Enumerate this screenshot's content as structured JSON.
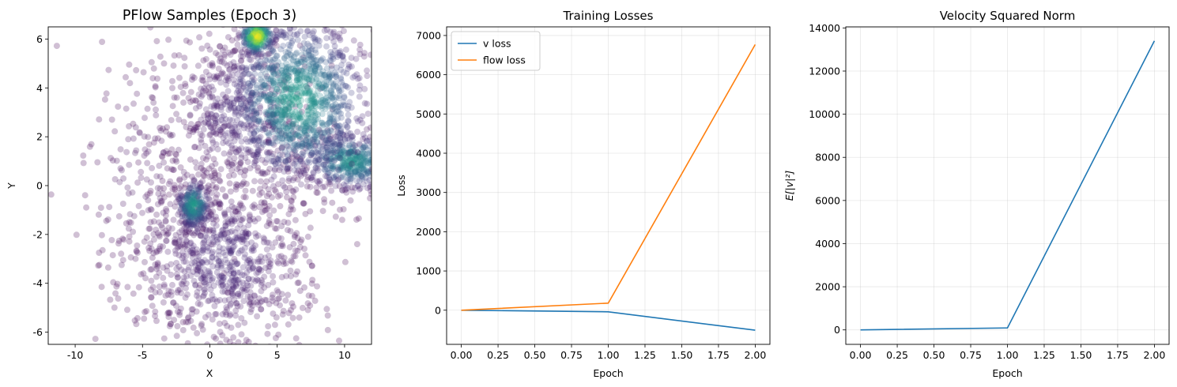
{
  "chart_data": [
    {
      "type": "scatter",
      "title": "PFlow Samples (Epoch 3)",
      "xlabel": "X",
      "ylabel": "Y",
      "xlim": [
        -12,
        12
      ],
      "ylim": [
        -6.5,
        6.5
      ],
      "xticks": [
        -10,
        -5,
        0,
        5,
        10
      ],
      "yticks": [
        -6,
        -4,
        -2,
        0,
        2,
        4,
        6
      ],
      "grid": false,
      "colormap": "viridis",
      "point_alpha": 0.25,
      "clusters": [
        {
          "center": [
            3.5,
            6.1
          ],
          "spread": [
            0.6,
            0.35
          ],
          "count": 260,
          "density": 1.0
        },
        {
          "center": [
            6.5,
            3.5
          ],
          "spread": [
            2.6,
            1.7
          ],
          "count": 1200,
          "density": 0.55
        },
        {
          "center": [
            10.5,
            1.0
          ],
          "spread": [
            1.8,
            0.6
          ],
          "count": 500,
          "density": 0.5
        },
        {
          "center": [
            -1.2,
            -0.8
          ],
          "spread": [
            0.6,
            0.5
          ],
          "count": 260,
          "density": 0.55
        },
        {
          "center": [
            1.0,
            -3.0
          ],
          "spread": [
            3.2,
            1.8
          ],
          "count": 900,
          "density": 0.12
        },
        {
          "center": [
            2.0,
            3.0
          ],
          "spread": [
            2.5,
            1.8
          ],
          "count": 500,
          "density": 0.12
        },
        {
          "center": [
            -4.0,
            0.0
          ],
          "spread": [
            2.5,
            3.0
          ],
          "count": 220,
          "density": 0.05
        }
      ]
    },
    {
      "type": "line",
      "title": "Training Losses",
      "xlabel": "Epoch",
      "ylabel": "Loss",
      "xlim": [
        -0.1,
        2.1
      ],
      "ylim": [
        -870,
        7220
      ],
      "xticks": [
        "0.00",
        "0.25",
        "0.50",
        "0.75",
        "1.00",
        "1.25",
        "1.50",
        "1.75",
        "2.00"
      ],
      "yticks": [
        0,
        1000,
        2000,
        3000,
        4000,
        5000,
        6000,
        7000
      ],
      "grid": true,
      "legend_position": "upper-left",
      "x": [
        0,
        1,
        2
      ],
      "series": [
        {
          "name": "v loss",
          "color": "#1f77b4",
          "values": [
            0,
            -40,
            -510
          ]
        },
        {
          "name": "flow loss",
          "color": "#ff7f0e",
          "values": [
            0,
            180,
            6770
          ]
        }
      ]
    },
    {
      "type": "line",
      "title": "Velocity Squared Norm",
      "xlabel": "Epoch",
      "ylabel": "E[|v|²]",
      "xlim": [
        -0.1,
        2.1
      ],
      "ylim": [
        -670,
        14050
      ],
      "xticks": [
        "0.00",
        "0.25",
        "0.50",
        "0.75",
        "1.00",
        "1.25",
        "1.50",
        "1.75",
        "2.00"
      ],
      "yticks": [
        0,
        2000,
        4000,
        6000,
        8000,
        10000,
        12000,
        14000
      ],
      "grid": true,
      "x": [
        0,
        1,
        2
      ],
      "series": [
        {
          "color": "#1f77b4",
          "values": [
            0,
            90,
            13400
          ]
        }
      ]
    }
  ]
}
